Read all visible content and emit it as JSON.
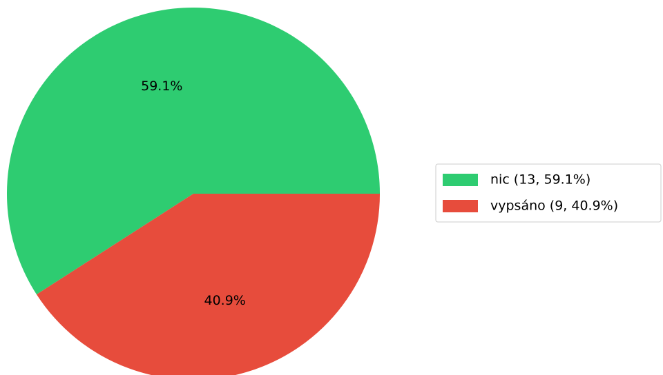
{
  "chart_data": {
    "type": "pie",
    "categories": [
      "nic (13, 59.1%)",
      "vypsáno (9, 40.9%)"
    ],
    "values": [
      59.1,
      40.9
    ],
    "value_labels": [
      "59.1%",
      "40.9%"
    ],
    "colors": [
      "#2ecc71",
      "#e74c3c"
    ],
    "legend": "right"
  }
}
